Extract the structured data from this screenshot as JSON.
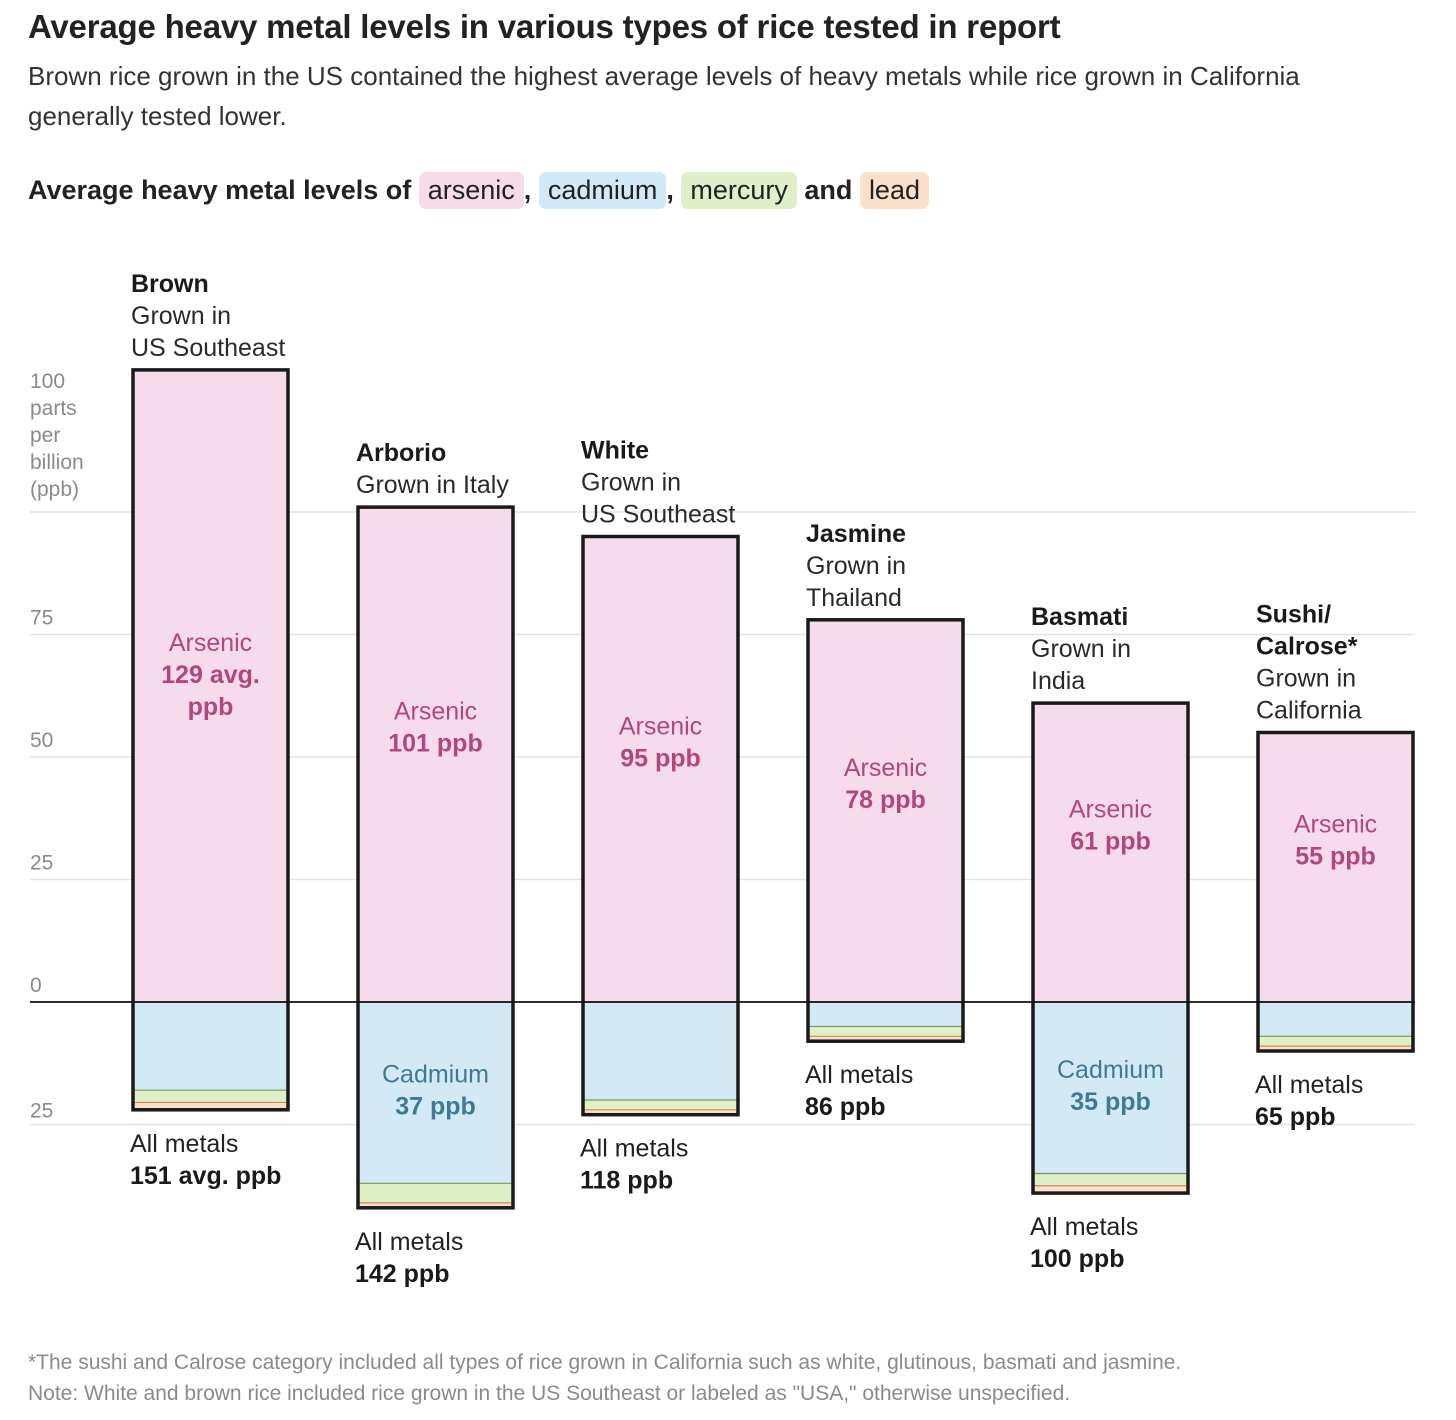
{
  "title": "Average heavy metal levels in various types of rice tested in report",
  "subtitle": "Brown rice grown in the US contained the highest average levels of heavy metals while rice grown in California generally tested lower.",
  "legend": {
    "prefix": "Average heavy metal levels of",
    "sep1": ",",
    "sep2": ",",
    "and": "and",
    "items": [
      {
        "label": "arsenic",
        "color": "#f6dcea"
      },
      {
        "label": "cadmium",
        "color": "#d3e9f6"
      },
      {
        "label": "mercury",
        "color": "#dff0c9"
      },
      {
        "label": "lead",
        "color": "#fbe0cc"
      }
    ]
  },
  "notes": [
    "*The sushi and Calrose category included all types of rice grown in California such as white, glutinous, basmati and jasmine.",
    "Note: White and brown rice included rice grown in the US Southeast or labeled as \"USA,\" otherwise unspecified."
  ],
  "colors": {
    "arsenic": "#f6dcea",
    "cadmium": "#d3e9f6",
    "mercury": "#dff0c9",
    "lead": "#fbe0cc",
    "arsenic_text": "#b3467f",
    "cadmium_text": "#3f7a95",
    "mercury_edge": "#7a9a55",
    "lead_edge": "#d2875a",
    "grid": "#e3e3e3",
    "outline": "#1a1a1a"
  },
  "chart_data": {
    "type": "bar",
    "stacked": true,
    "unit": "parts per billion (ppb)",
    "y_axis_label": "parts per billion (ppb)",
    "y_ticks": [
      {
        "value": 100,
        "label": "100"
      },
      {
        "value": 75,
        "label": "75"
      },
      {
        "value": 50,
        "label": "50"
      },
      {
        "value": 25,
        "label": "25"
      },
      {
        "value": 0,
        "label": "0"
      },
      {
        "value": -25,
        "label": "25"
      }
    ],
    "ylim": [
      -25,
      100
    ],
    "grid": true,
    "note": "Arsenic is plotted above the zero line; cadmium, mercury and lead are stacked below it.",
    "categories": [
      {
        "name": "Brown",
        "origin": "Grown in\nUS Southeast",
        "arsenic": 129,
        "cadmium": 18,
        "mercury": 2.5,
        "lead": 1.5,
        "arsenic_label": "Arsenic",
        "arsenic_value_label": "129 avg.\nppb",
        "cadmium_label": "",
        "cadmium_value_label": "",
        "total_label": "All metals",
        "total_value_label": "151 avg. ppb",
        "total": 151
      },
      {
        "name": "Arborio",
        "origin": "Grown in Italy",
        "arsenic": 101,
        "cadmium": 37,
        "mercury": 4,
        "lead": 1,
        "arsenic_label": "Arsenic",
        "arsenic_value_label": "101 ppb",
        "cadmium_label": "Cadmium",
        "cadmium_value_label": "37 ppb",
        "total_label": "All metals",
        "total_value_label": "142 ppb",
        "total": 142
      },
      {
        "name": "White",
        "origin": "Grown in\nUS Southeast",
        "arsenic": 95,
        "cadmium": 20,
        "mercury": 2,
        "lead": 1,
        "arsenic_label": "Arsenic",
        "arsenic_value_label": "95 ppb",
        "cadmium_label": "",
        "cadmium_value_label": "",
        "total_label": "All metals",
        "total_value_label": "118 ppb",
        "total": 118
      },
      {
        "name": "Jasmine",
        "origin": "Grown in\nThailand",
        "arsenic": 78,
        "cadmium": 5,
        "mercury": 2,
        "lead": 1,
        "arsenic_label": "Arsenic",
        "arsenic_value_label": "78 ppb",
        "cadmium_label": "",
        "cadmium_value_label": "",
        "total_label": "All metals",
        "total_value_label": "86 ppb",
        "total": 86
      },
      {
        "name": "Basmati",
        "origin": "Grown in\nIndia",
        "arsenic": 61,
        "cadmium": 35,
        "mercury": 2.5,
        "lead": 1.5,
        "arsenic_label": "Arsenic",
        "arsenic_value_label": "61 ppb",
        "cadmium_label": "Cadmium",
        "cadmium_value_label": "35 ppb",
        "total_label": "All metals",
        "total_value_label": "100 ppb",
        "total": 100
      },
      {
        "name": "Sushi/\nCalrose*",
        "origin": "Grown in\nCalifornia",
        "arsenic": 55,
        "cadmium": 7,
        "mercury": 2,
        "lead": 1,
        "arsenic_label": "Arsenic",
        "arsenic_value_label": "55 ppb",
        "cadmium_label": "",
        "cadmium_value_label": "",
        "total_label": "All metals",
        "total_value_label": "65 ppb",
        "total": 65
      }
    ]
  }
}
